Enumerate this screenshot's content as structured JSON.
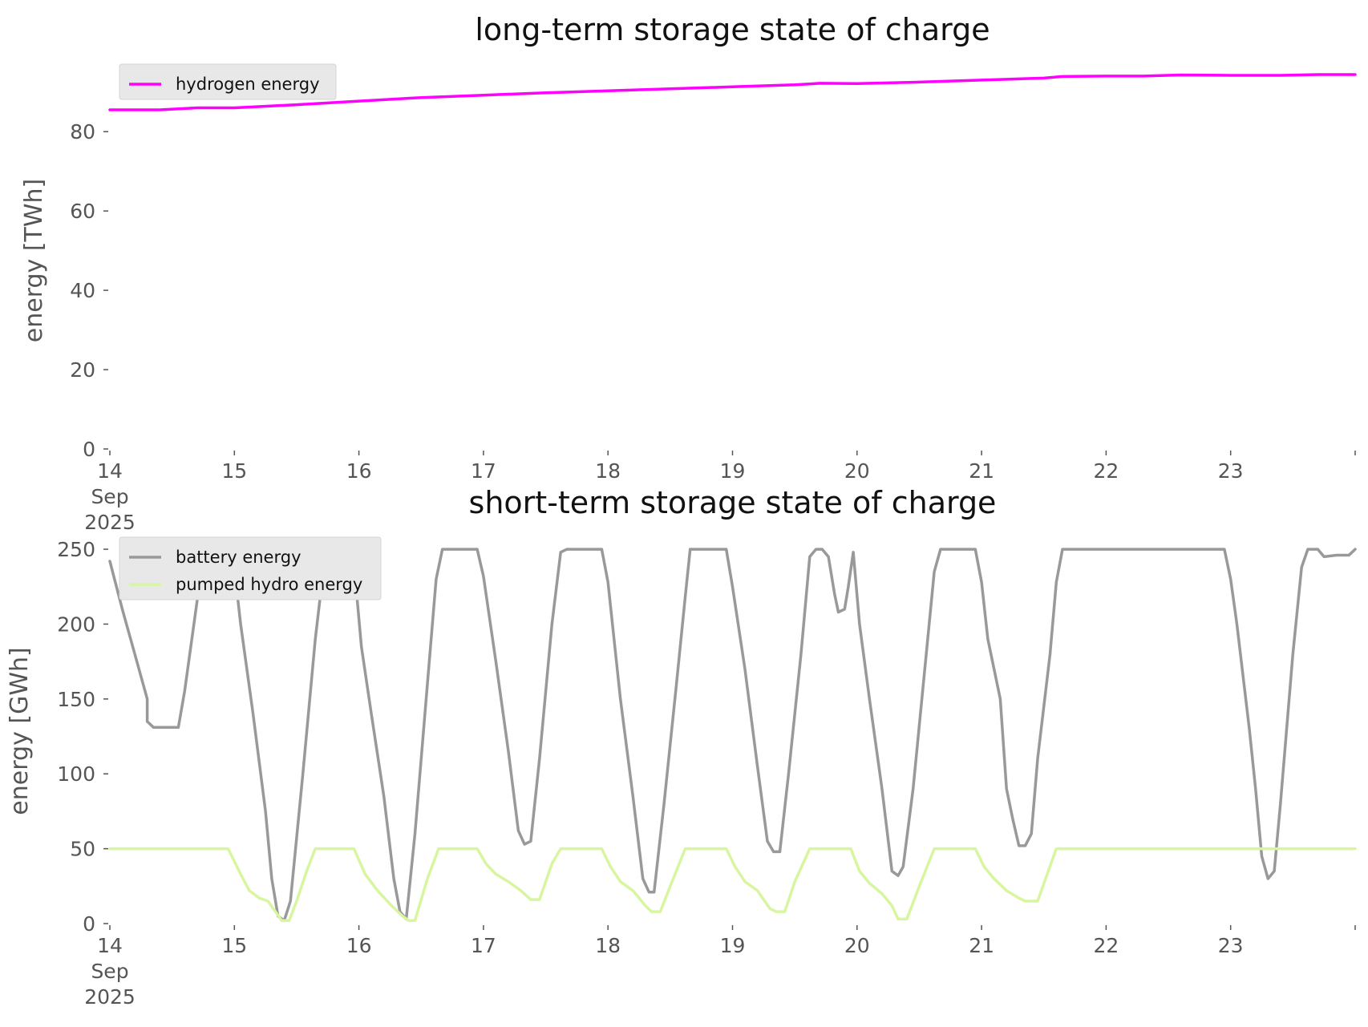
{
  "charts": [
    {
      "type": "line",
      "title": "long-term storage state of charge",
      "ylabel": "energy [TWh]",
      "xlabel": "",
      "ylim": [
        0,
        95
      ],
      "yticks": [
        0,
        20,
        40,
        60,
        80
      ],
      "xlim": [
        14,
        24
      ],
      "xticks": [
        14,
        15,
        16,
        17,
        18,
        19,
        20,
        21,
        22,
        23
      ],
      "xtick_labels": [
        "14\nSep\n2025",
        "15",
        "16",
        "17",
        "18",
        "19",
        "20",
        "21",
        "22",
        "23"
      ],
      "grid": false,
      "legend_placement": "top-left",
      "series": [
        {
          "name": "hydrogen energy",
          "color": "#ff00ff",
          "points": [
            [
              14.0,
              85.5
            ],
            [
              14.4,
              85.5
            ],
            [
              14.7,
              86.0
            ],
            [
              15.0,
              86.0
            ],
            [
              15.5,
              86.8
            ],
            [
              16.0,
              87.7
            ],
            [
              16.5,
              88.6
            ],
            [
              17.0,
              89.2
            ],
            [
              17.5,
              89.8
            ],
            [
              18.0,
              90.3
            ],
            [
              18.5,
              90.8
            ],
            [
              19.0,
              91.3
            ],
            [
              19.5,
              91.8
            ],
            [
              19.7,
              92.2
            ],
            [
              20.0,
              92.1
            ],
            [
              20.5,
              92.5
            ],
            [
              21.0,
              93.0
            ],
            [
              21.5,
              93.5
            ],
            [
              21.65,
              93.9
            ],
            [
              22.0,
              94.0
            ],
            [
              22.3,
              94.0
            ],
            [
              22.6,
              94.3
            ],
            [
              23.0,
              94.2
            ],
            [
              23.4,
              94.2
            ],
            [
              23.7,
              94.4
            ],
            [
              24.0,
              94.4
            ]
          ]
        }
      ]
    },
    {
      "type": "line",
      "title": "short-term storage state of charge",
      "ylabel": "energy [GWh]",
      "xlabel": "",
      "ylim": [
        0,
        257
      ],
      "yticks": [
        0,
        50,
        100,
        150,
        200,
        250
      ],
      "xlim": [
        14,
        24
      ],
      "xticks": [
        14,
        15,
        16,
        17,
        18,
        19,
        20,
        21,
        22,
        23
      ],
      "xtick_labels": [
        "14\nSep\n2025",
        "15",
        "16",
        "17",
        "18",
        "19",
        "20",
        "21",
        "22",
        "23"
      ],
      "grid": false,
      "legend_placement": "top-left",
      "series": [
        {
          "name": "battery energy",
          "color": "#999999",
          "points": [
            [
              14.0,
              242
            ],
            [
              14.1,
              210
            ],
            [
              14.2,
              180
            ],
            [
              14.3,
              150
            ],
            [
              14.3,
              135
            ],
            [
              14.35,
              131
            ],
            [
              14.45,
              131
            ],
            [
              14.55,
              131
            ],
            [
              14.6,
              155
            ],
            [
              14.7,
              215
            ],
            [
              14.75,
              250
            ],
            [
              14.85,
              250
            ],
            [
              14.92,
              235
            ],
            [
              14.98,
              252
            ],
            [
              15.05,
              200
            ],
            [
              15.15,
              140
            ],
            [
              15.25,
              75
            ],
            [
              15.3,
              30
            ],
            [
              15.35,
              5
            ],
            [
              15.4,
              2
            ],
            [
              15.45,
              15
            ],
            [
              15.55,
              100
            ],
            [
              15.65,
              190
            ],
            [
              15.72,
              240
            ],
            [
              15.76,
              250
            ],
            [
              15.95,
              250
            ],
            [
              16.02,
              185
            ],
            [
              16.1,
              140
            ],
            [
              16.2,
              85
            ],
            [
              16.28,
              30
            ],
            [
              16.33,
              8
            ],
            [
              16.38,
              3
            ],
            [
              16.45,
              60
            ],
            [
              16.55,
              160
            ],
            [
              16.62,
              230
            ],
            [
              16.67,
              250
            ],
            [
              16.95,
              250
            ],
            [
              17.0,
              232
            ],
            [
              17.1,
              175
            ],
            [
              17.2,
              115
            ],
            [
              17.28,
              62
            ],
            [
              17.33,
              53
            ],
            [
              17.38,
              55
            ],
            [
              17.45,
              110
            ],
            [
              17.55,
              200
            ],
            [
              17.62,
              248
            ],
            [
              17.67,
              250
            ],
            [
              17.95,
              250
            ],
            [
              18.0,
              228
            ],
            [
              18.1,
              150
            ],
            [
              18.2,
              85
            ],
            [
              18.28,
              30
            ],
            [
              18.33,
              21
            ],
            [
              18.37,
              21
            ],
            [
              18.45,
              80
            ],
            [
              18.55,
              160
            ],
            [
              18.62,
              218
            ],
            [
              18.66,
              250
            ],
            [
              18.95,
              250
            ],
            [
              19.0,
              225
            ],
            [
              19.1,
              170
            ],
            [
              19.2,
              105
            ],
            [
              19.28,
              55
            ],
            [
              19.33,
              48
            ],
            [
              19.38,
              48
            ],
            [
              19.45,
              100
            ],
            [
              19.55,
              180
            ],
            [
              19.62,
              245
            ],
            [
              19.67,
              250
            ],
            [
              19.72,
              250
            ],
            [
              19.77,
              245
            ],
            [
              19.82,
              220
            ],
            [
              19.85,
              208
            ],
            [
              19.9,
              210
            ],
            [
              19.93,
              225
            ],
            [
              19.97,
              248
            ],
            [
              20.02,
              200
            ],
            [
              20.1,
              150
            ],
            [
              20.2,
              90
            ],
            [
              20.28,
              35
            ],
            [
              20.33,
              32
            ],
            [
              20.37,
              38
            ],
            [
              20.45,
              90
            ],
            [
              20.55,
              175
            ],
            [
              20.62,
              235
            ],
            [
              20.67,
              250
            ],
            [
              20.95,
              250
            ],
            [
              21.0,
              228
            ],
            [
              21.05,
              190
            ],
            [
              21.15,
              150
            ],
            [
              21.2,
              90
            ],
            [
              21.25,
              70
            ],
            [
              21.3,
              52
            ],
            [
              21.35,
              52
            ],
            [
              21.4,
              60
            ],
            [
              21.45,
              110
            ],
            [
              21.55,
              180
            ],
            [
              21.6,
              228
            ],
            [
              21.65,
              250
            ],
            [
              22.95,
              250
            ],
            [
              23.0,
              230
            ],
            [
              23.05,
              200
            ],
            [
              23.15,
              130
            ],
            [
              23.2,
              90
            ],
            [
              23.25,
              45
            ],
            [
              23.3,
              30
            ],
            [
              23.35,
              35
            ],
            [
              23.4,
              80
            ],
            [
              23.5,
              180
            ],
            [
              23.57,
              238
            ],
            [
              23.62,
              250
            ],
            [
              23.7,
              250
            ],
            [
              23.75,
              245
            ],
            [
              23.85,
              246
            ],
            [
              23.95,
              246
            ],
            [
              24.0,
              250
            ]
          ]
        },
        {
          "name": "pumped hydro energy",
          "color": "#d8f5a0",
          "points": [
            [
              14.0,
              50
            ],
            [
              14.95,
              50
            ],
            [
              15.05,
              33
            ],
            [
              15.12,
              22
            ],
            [
              15.2,
              17
            ],
            [
              15.27,
              15
            ],
            [
              15.33,
              8
            ],
            [
              15.38,
              2
            ],
            [
              15.44,
              2
            ],
            [
              15.5,
              15
            ],
            [
              15.58,
              35
            ],
            [
              15.65,
              50
            ],
            [
              15.96,
              50
            ],
            [
              16.05,
              33
            ],
            [
              16.15,
              22
            ],
            [
              16.25,
              13
            ],
            [
              16.35,
              5
            ],
            [
              16.4,
              2
            ],
            [
              16.45,
              2
            ],
            [
              16.55,
              30
            ],
            [
              16.64,
              50
            ],
            [
              16.95,
              50
            ],
            [
              17.02,
              40
            ],
            [
              17.1,
              33
            ],
            [
              17.2,
              28
            ],
            [
              17.3,
              22
            ],
            [
              17.38,
              16
            ],
            [
              17.45,
              16
            ],
            [
              17.55,
              40
            ],
            [
              17.62,
              50
            ],
            [
              17.95,
              50
            ],
            [
              18.02,
              38
            ],
            [
              18.1,
              28
            ],
            [
              18.2,
              22
            ],
            [
              18.3,
              12
            ],
            [
              18.35,
              8
            ],
            [
              18.42,
              8
            ],
            [
              18.5,
              25
            ],
            [
              18.62,
              50
            ],
            [
              18.95,
              50
            ],
            [
              19.02,
              38
            ],
            [
              19.1,
              28
            ],
            [
              19.2,
              22
            ],
            [
              19.3,
              10
            ],
            [
              19.35,
              8
            ],
            [
              19.42,
              8
            ],
            [
              19.5,
              28
            ],
            [
              19.62,
              50
            ],
            [
              19.95,
              50
            ],
            [
              20.02,
              35
            ],
            [
              20.1,
              27
            ],
            [
              20.2,
              20
            ],
            [
              20.28,
              12
            ],
            [
              20.33,
              3
            ],
            [
              20.4,
              3
            ],
            [
              20.5,
              25
            ],
            [
              20.62,
              50
            ],
            [
              20.95,
              50
            ],
            [
              21.02,
              38
            ],
            [
              21.1,
              30
            ],
            [
              21.2,
              22
            ],
            [
              21.3,
              17
            ],
            [
              21.35,
              15
            ],
            [
              21.45,
              15
            ],
            [
              21.6,
              50
            ],
            [
              24.0,
              50
            ]
          ]
        }
      ]
    }
  ]
}
